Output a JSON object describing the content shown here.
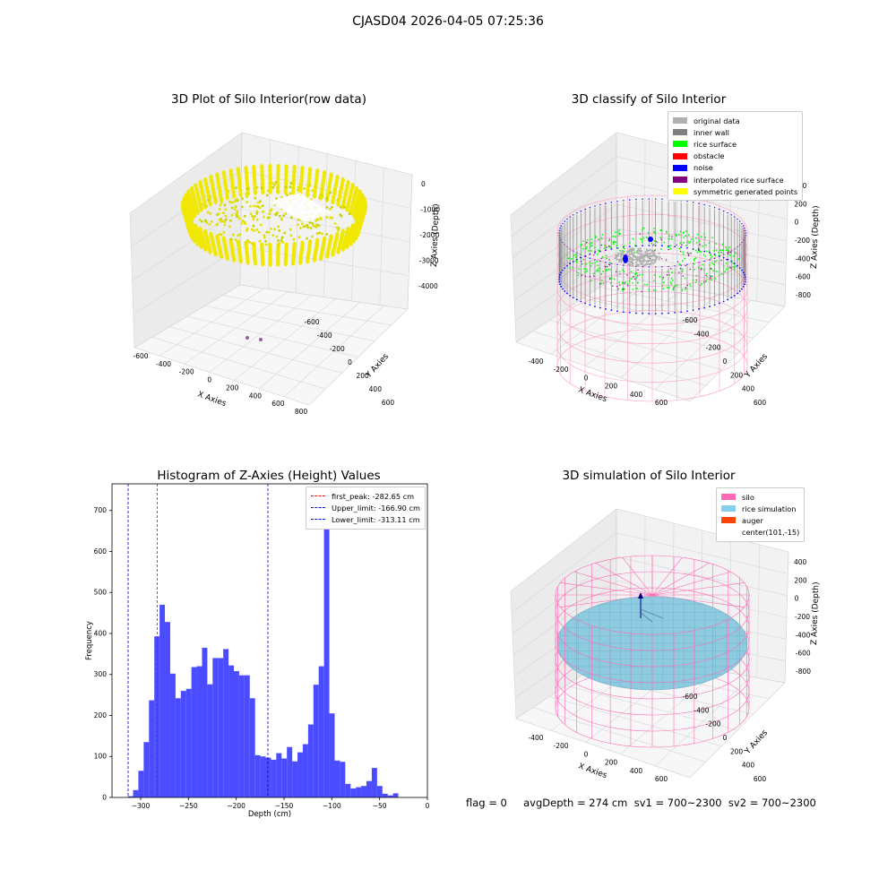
{
  "suptitle": "CJASD04 2026-04-05 07:25:36",
  "footer": "flag = 0     avgDepth = 274 cm  sv1 = 700~2300  sv2 = 700~2300",
  "chart_data": [
    {
      "type": "scatter",
      "subtype": "3d",
      "title": "3D Plot of Silo Interior(row data)",
      "xlabel": "X Axies",
      "ylabel": "Y Axies",
      "zlabel": "Z Axies (Depth)",
      "xticks": [
        "-600",
        "-400",
        "-200",
        "0",
        "200",
        "400",
        "600",
        "800"
      ],
      "yticks": [
        "-600",
        "-400",
        "-200",
        "0",
        "200",
        "400",
        "600"
      ],
      "zticks": [
        "0",
        "-1000",
        "-2000",
        "-3000",
        "-4000"
      ],
      "colors": {
        "points": "#f0e800",
        "outliers": "#9b59a8"
      }
    },
    {
      "type": "scatter",
      "subtype": "3d",
      "title": "3D classify of Silo Interior",
      "xlabel": "X Axies",
      "ylabel": "Y Axies",
      "zlabel": "Z Axies (Depth)",
      "xticks": [
        "-400",
        "-200",
        "0",
        "200",
        "400",
        "600"
      ],
      "yticks": [
        "-600",
        "-400",
        "-200",
        "0",
        "200",
        "400",
        "600"
      ],
      "zticks": [
        "400",
        "200",
        "0",
        "-200",
        "-400",
        "-600",
        "-800"
      ],
      "legend": [
        {
          "label": "original data",
          "color": "#b0b0b0"
        },
        {
          "label": "inner wall",
          "color": "#808080"
        },
        {
          "label": "rice surface",
          "color": "#00ff00"
        },
        {
          "label": "obstacle",
          "color": "#ff0000"
        },
        {
          "label": "noise",
          "color": "#0000ff"
        },
        {
          "label": "interpolated rice surface",
          "color": "#800080"
        },
        {
          "label": "symmetric generated points",
          "color": "#ffff00"
        }
      ],
      "wire_color": "#ff9ec8"
    },
    {
      "type": "bar",
      "subtype": "histogram",
      "title": "Histogram of Z-Axies (Height) Values",
      "xlabel": "Depth (cm)",
      "ylabel": "Frequency",
      "xlim": [
        -330,
        0
      ],
      "ylim": [
        0,
        765
      ],
      "xticks": [
        -300,
        -250,
        -200,
        -150,
        -100,
        -50,
        0
      ],
      "yticks": [
        0,
        100,
        200,
        300,
        400,
        500,
        600,
        700
      ],
      "bin_width": 5.55,
      "bin_start": -313.5,
      "values": [
        3,
        18,
        65,
        135,
        237,
        393,
        470,
        428,
        302,
        242,
        260,
        265,
        318,
        320,
        365,
        276,
        340,
        340,
        362,
        322,
        308,
        298,
        298,
        242,
        103,
        100,
        97,
        92,
        108,
        95,
        123,
        88,
        110,
        130,
        178,
        275,
        320,
        720,
        205,
        90,
        87,
        33,
        22,
        25,
        28,
        40,
        72,
        28,
        9,
        5,
        10
      ],
      "bar_color": "#4b4bff",
      "vlines": [
        {
          "label": "first_peak: -282.65 cm",
          "x": -282.65,
          "color": "#ff0000"
        },
        {
          "label": "Upper_limit: -166.90 cm",
          "x": -166.9,
          "color": "#0000c8"
        },
        {
          "label": "Lower_limit: -313.11 cm",
          "x": -313.11,
          "color": "#0000c8"
        }
      ],
      "legend_position": "upper-right"
    },
    {
      "type": "scatter",
      "subtype": "3d-surface",
      "title": "3D simulation of Silo Interior",
      "xlabel": "X Axies",
      "ylabel": "Y Axies",
      "zlabel": "Z Axies (Depth)",
      "xticks": [
        "-400",
        "-200",
        "0",
        "200",
        "400",
        "600"
      ],
      "yticks": [
        "-600",
        "-400",
        "-200",
        "0",
        "200",
        "400",
        "600"
      ],
      "zticks": [
        "400",
        "200",
        "0",
        "-200",
        "-400",
        "-600",
        "-800"
      ],
      "legend": [
        {
          "label": "silo",
          "color": "#ff69b4"
        },
        {
          "label": "rice simulation",
          "color": "#87ceeb"
        },
        {
          "label": "auger",
          "color": "#ff4500"
        },
        {
          "label": "center(101,-15)",
          "color": ""
        }
      ],
      "surface_color": "#8ecae0"
    }
  ]
}
